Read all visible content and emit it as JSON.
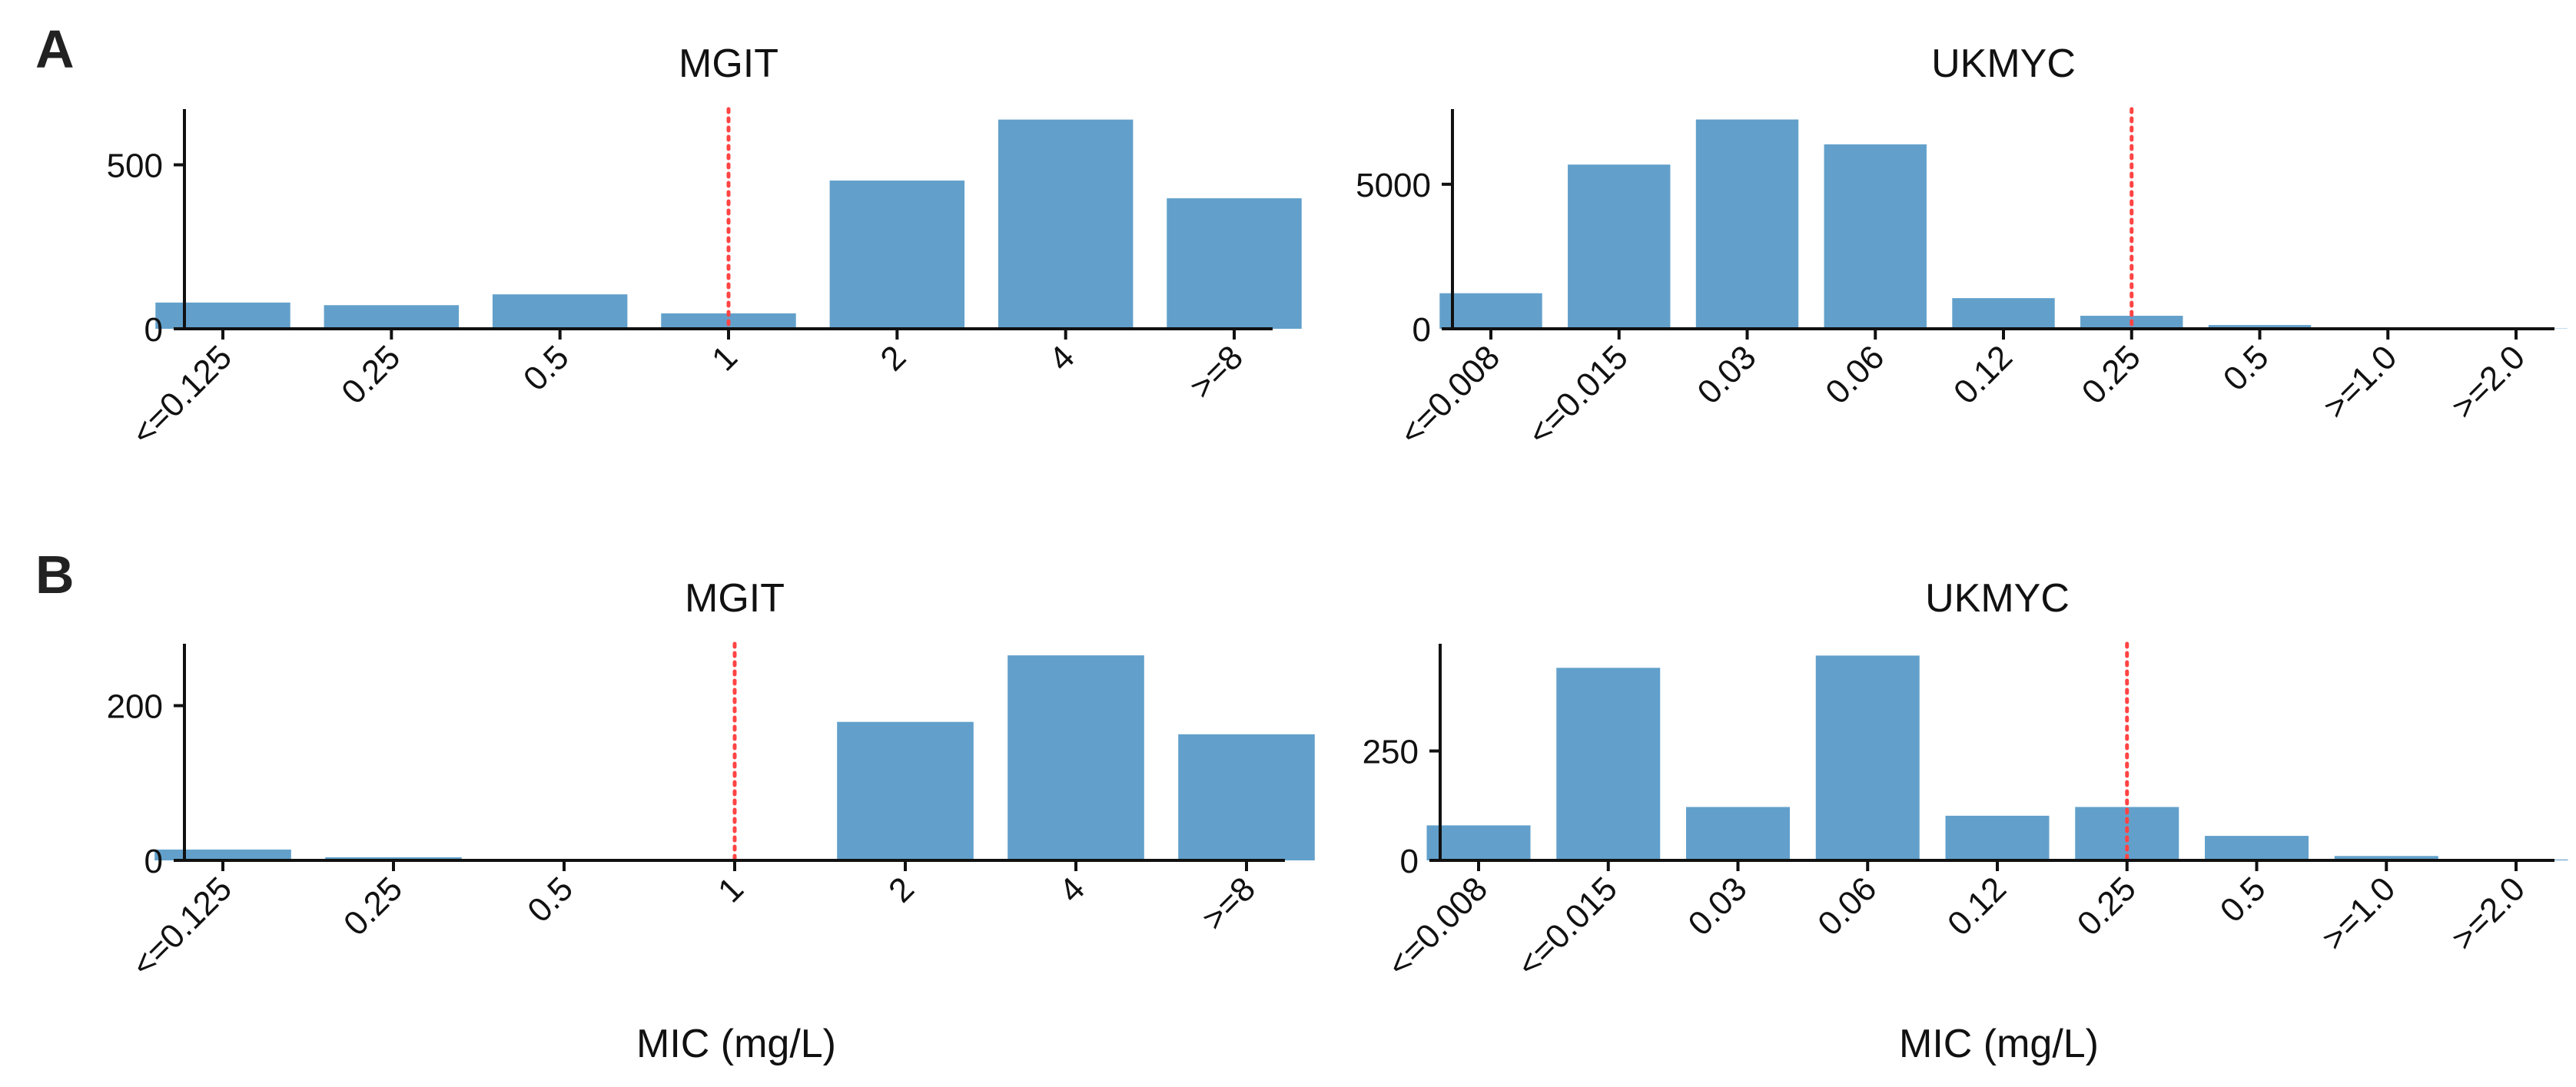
{
  "figure": {
    "panel_letters": [
      "A",
      "B"
    ]
  },
  "colors": {
    "bar": "#62a0cb",
    "threshold_line": "#ff4444",
    "axis": "#111111"
  },
  "chart_data": [
    {
      "type": "bar",
      "title": "MGIT",
      "xlabel": "",
      "ylabel": "",
      "categories": [
        "<=0.125",
        "0.25",
        "0.5",
        "1",
        "2",
        "4",
        ">=8"
      ],
      "values": [
        80,
        72,
        105,
        47,
        452,
        638,
        398
      ],
      "yticks": [
        0,
        500
      ],
      "ylim": [
        0,
        670
      ],
      "threshold_category": "1",
      "threshold_style": "dotted",
      "grid": false,
      "legend": "none"
    },
    {
      "type": "bar",
      "title": "UKMYC",
      "xlabel": "",
      "ylabel": "",
      "categories": [
        "<=0.008",
        "<=0.015",
        "0.03",
        "0.06",
        "0.12",
        "0.25",
        "0.5",
        ">=1.0",
        ">=2.0"
      ],
      "values": [
        1230,
        5680,
        7240,
        6380,
        1060,
        450,
        130,
        20,
        10
      ],
      "yticks": [
        0,
        5000
      ],
      "ylim": [
        0,
        7600
      ],
      "threshold_category": "0.25",
      "threshold_style": "dotted",
      "grid": false,
      "legend": "none"
    },
    {
      "type": "bar",
      "title": "MGIT",
      "xlabel": "MIC (mg/L)",
      "ylabel": "",
      "categories": [
        "<=0.125",
        "0.25",
        "0.5",
        "1",
        "2",
        "4",
        ">=8"
      ],
      "values": [
        14,
        4,
        1,
        1,
        179,
        265,
        163
      ],
      "yticks": [
        0,
        200
      ],
      "ylim": [
        0,
        280
      ],
      "threshold_category": "1",
      "threshold_style": "dotted",
      "grid": false,
      "legend": "none"
    },
    {
      "type": "bar",
      "title": "UKMYC",
      "xlabel": "MIC (mg/L)",
      "ylabel": "",
      "categories": [
        "<=0.008",
        "<=0.015",
        "0.03",
        "0.06",
        "0.12",
        "0.25",
        "0.5",
        ">=1.0",
        ">=2.0"
      ],
      "values": [
        80,
        440,
        122,
        468,
        102,
        122,
        56,
        10,
        2
      ],
      "yticks": [
        0,
        250
      ],
      "ylim": [
        0,
        495
      ],
      "threshold_category": "0.25",
      "threshold_style": "dotted",
      "grid": false,
      "legend": "none"
    }
  ]
}
